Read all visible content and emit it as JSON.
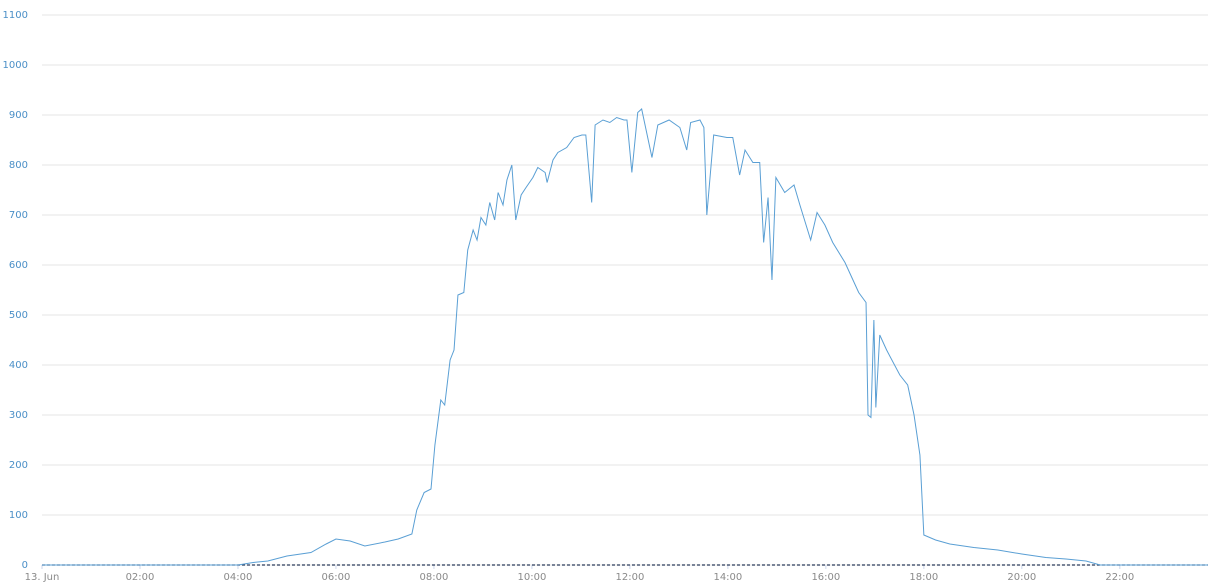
{
  "chart_data": {
    "type": "line",
    "x": [
      0,
      4.0,
      4.31,
      4.61,
      5.0,
      5.49,
      5.8,
      6.0,
      6.29,
      6.59,
      7.0,
      7.27,
      7.55,
      7.65,
      7.8,
      7.94,
      8.02,
      8.14,
      8.22,
      8.33,
      8.41,
      8.49,
      8.61,
      8.69,
      8.8,
      8.88,
      8.96,
      9.06,
      9.14,
      9.24,
      9.31,
      9.41,
      9.49,
      9.59,
      9.67,
      9.78,
      9.88,
      10.02,
      10.12,
      10.27,
      10.31,
      10.43,
      10.53,
      10.71,
      10.86,
      11.02,
      11.1,
      11.22,
      11.29,
      11.45,
      11.59,
      11.73,
      11.88,
      11.94,
      12.04,
      12.16,
      12.24,
      12.45,
      12.57,
      12.8,
      13.02,
      13.16,
      13.24,
      13.43,
      13.51,
      13.57,
      13.71,
      13.98,
      14.1,
      14.24,
      14.35,
      14.51,
      14.65,
      14.73,
      14.82,
      14.9,
      14.98,
      15.16,
      15.35,
      15.47,
      15.69,
      15.82,
      15.98,
      16.14,
      16.39,
      16.53,
      16.67,
      16.82,
      16.86,
      16.92,
      16.98,
      17.02,
      17.1,
      17.24,
      17.51,
      17.67,
      17.8,
      17.92,
      18.0,
      18.24,
      18.53,
      19.02,
      19.51,
      20.0,
      20.49,
      20.9,
      21.31,
      21.6,
      23.8
    ],
    "values": [
      0,
      0,
      5,
      8,
      18,
      25,
      42,
      52,
      48,
      38,
      46,
      52,
      62,
      110,
      145,
      152,
      240,
      330,
      320,
      410,
      430,
      540,
      545,
      630,
      670,
      650,
      695,
      680,
      725,
      690,
      745,
      720,
      770,
      800,
      690,
      740,
      755,
      775,
      795,
      785,
      765,
      810,
      825,
      835,
      855,
      860,
      860,
      725,
      880,
      890,
      885,
      895,
      890,
      890,
      785,
      905,
      912,
      815,
      880,
      890,
      875,
      830,
      885,
      890,
      875,
      700,
      860,
      855,
      855,
      780,
      830,
      805,
      805,
      645,
      735,
      570,
      775,
      745,
      760,
      720,
      650,
      705,
      680,
      645,
      605,
      575,
      545,
      525,
      300,
      295,
      490,
      315,
      460,
      430,
      380,
      360,
      300,
      220,
      60,
      50,
      42,
      35,
      30,
      22,
      15,
      12,
      8,
      0,
      0
    ],
    "color": "#5a9fd4",
    "xlim": [
      0,
      23.8
    ],
    "xticks": [
      {
        "value": 0,
        "label": "13. Jun"
      },
      {
        "value": 2,
        "label": "02:00"
      },
      {
        "value": 4,
        "label": "04:00"
      },
      {
        "value": 6,
        "label": "06:00"
      },
      {
        "value": 8,
        "label": "08:00"
      },
      {
        "value": 10,
        "label": "10:00"
      },
      {
        "value": 12,
        "label": "12:00"
      },
      {
        "value": 14,
        "label": "14:00"
      },
      {
        "value": 16,
        "label": "16:00"
      },
      {
        "value": 18,
        "label": "18:00"
      },
      {
        "value": 20,
        "label": "20:00"
      },
      {
        "value": 22,
        "label": "22:00"
      }
    ],
    "ylim": [
      0,
      1100
    ],
    "yticks": [
      0,
      100,
      200,
      300,
      400,
      500,
      600,
      700,
      800,
      900,
      1000,
      1100
    ],
    "grid": true
  }
}
